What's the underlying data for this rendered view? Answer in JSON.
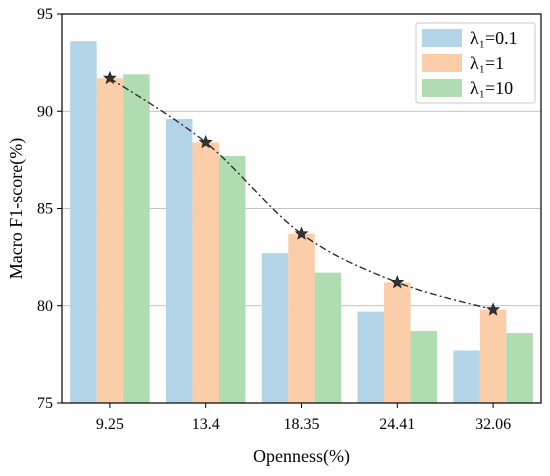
{
  "chart_data": {
    "type": "bar",
    "title": "",
    "xlabel": "Openness(%)",
    "ylabel": "Macro  F1-score(%)",
    "ylim": [
      75,
      95
    ],
    "yticks": [
      75,
      80,
      85,
      90,
      95
    ],
    "grid": "horizontal",
    "legend_position": "top-right",
    "categories": [
      "9.25",
      "13.4",
      "18.35",
      "24.41",
      "32.06"
    ],
    "series": [
      {
        "name": "λ₁=0.1",
        "color": "#b4d4e8",
        "values": [
          93.6,
          89.6,
          82.7,
          79.7,
          77.7
        ]
      },
      {
        "name": "λ₁=1",
        "color": "#fbcda8",
        "values": [
          91.7,
          88.4,
          83.7,
          81.2,
          79.8
        ]
      },
      {
        "name": "λ₁=10",
        "color": "#afdcb0",
        "values": [
          91.9,
          87.7,
          81.7,
          78.7,
          78.6
        ]
      }
    ],
    "trend_line": {
      "series": "λ₁=1",
      "style": "dash-dot",
      "marker": "star",
      "color": "#222222",
      "values": [
        91.7,
        88.4,
        83.7,
        81.2,
        79.8
      ]
    }
  }
}
